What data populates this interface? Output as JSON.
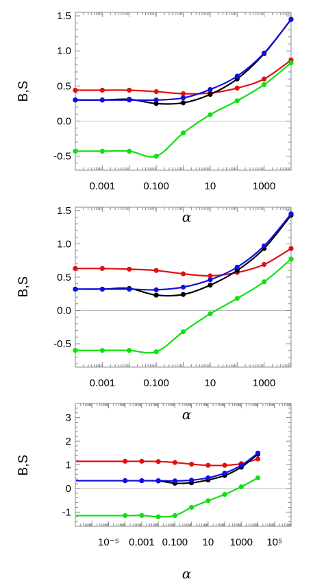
{
  "colors": {
    "black": "#000000",
    "blue": "#1010e0",
    "red": "#e01010",
    "green": "#10e010",
    "frame": "#888888",
    "zero_line": "#bbbbbb"
  },
  "chart_data": [
    {
      "type": "line",
      "xlabel": "α",
      "ylabel": "B,S",
      "x_scale": "log",
      "xlim": [
        0.0001,
        10000
      ],
      "ylim": [
        -0.7,
        1.55
      ],
      "x_ticks": [
        0.001,
        0.1,
        10,
        1000
      ],
      "x_tick_labels": [
        "0.001",
        "0.100",
        "10",
        "1000"
      ],
      "y_ticks": [
        -0.5,
        0.0,
        0.5,
        1.0,
        1.5
      ],
      "y_tick_labels": [
        "-0.5",
        "0.0",
        "0.5",
        "1.0",
        "1.5"
      ],
      "series": [
        {
          "color": "#e01010",
          "points": [
            [
              0.0001,
              0.44
            ],
            [
              0.001,
              0.44
            ],
            [
              0.01,
              0.44
            ],
            [
              0.1,
              0.42
            ],
            [
              1,
              0.39
            ],
            [
              10,
              0.4
            ],
            [
              100,
              0.47
            ],
            [
              1000,
              0.6
            ],
            [
              10000,
              0.87
            ]
          ]
        },
        {
          "color": "#000000",
          "points": [
            [
              0.0001,
              0.3
            ],
            [
              0.001,
              0.3
            ],
            [
              0.01,
              0.31
            ],
            [
              0.1,
              0.25
            ],
            [
              1,
              0.26
            ],
            [
              10,
              0.38
            ],
            [
              100,
              0.6
            ],
            [
              1000,
              0.96
            ],
            [
              10000,
              1.45
            ]
          ]
        },
        {
          "color": "#1010e0",
          "points": [
            [
              0.0001,
              0.3
            ],
            [
              0.001,
              0.3
            ],
            [
              0.01,
              0.3
            ],
            [
              0.1,
              0.3
            ],
            [
              1,
              0.33
            ],
            [
              10,
              0.45
            ],
            [
              100,
              0.64
            ],
            [
              1000,
              0.97
            ],
            [
              10000,
              1.45
            ]
          ]
        },
        {
          "color": "#10e010",
          "points": [
            [
              0.0001,
              -0.43
            ],
            [
              0.001,
              -0.43
            ],
            [
              0.01,
              -0.43
            ],
            [
              0.1,
              -0.5
            ],
            [
              1,
              -0.17
            ],
            [
              10,
              0.09
            ],
            [
              100,
              0.29
            ],
            [
              1000,
              0.52
            ],
            [
              10000,
              0.83
            ]
          ]
        }
      ]
    },
    {
      "type": "line",
      "xlabel": "α",
      "ylabel": "B,S",
      "x_scale": "log",
      "xlim": [
        0.0001,
        10000
      ],
      "ylim": [
        -0.85,
        1.55
      ],
      "x_ticks": [
        0.001,
        0.1,
        10,
        1000
      ],
      "x_tick_labels": [
        "0.001",
        "0.100",
        "10",
        "1000"
      ],
      "y_ticks": [
        -0.5,
        0.0,
        0.5,
        1.0,
        1.5
      ],
      "y_tick_labels": [
        "-0.5",
        "0.0",
        "0.5",
        "1.0",
        "1.5"
      ],
      "series": [
        {
          "color": "#e01010",
          "points": [
            [
              0.0001,
              0.63
            ],
            [
              0.001,
              0.63
            ],
            [
              0.01,
              0.62
            ],
            [
              0.1,
              0.6
            ],
            [
              1,
              0.55
            ],
            [
              10,
              0.52
            ],
            [
              100,
              0.57
            ],
            [
              1000,
              0.69
            ],
            [
              10000,
              0.93
            ]
          ]
        },
        {
          "color": "#000000",
          "points": [
            [
              0.0001,
              0.32
            ],
            [
              0.001,
              0.32
            ],
            [
              0.01,
              0.33
            ],
            [
              0.1,
              0.23
            ],
            [
              1,
              0.24
            ],
            [
              10,
              0.38
            ],
            [
              100,
              0.6
            ],
            [
              1000,
              0.93
            ],
            [
              10000,
              1.43
            ]
          ]
        },
        {
          "color": "#1010e0",
          "points": [
            [
              0.0001,
              0.32
            ],
            [
              0.001,
              0.32
            ],
            [
              0.01,
              0.32
            ],
            [
              0.1,
              0.31
            ],
            [
              1,
              0.35
            ],
            [
              10,
              0.46
            ],
            [
              100,
              0.65
            ],
            [
              1000,
              0.97
            ],
            [
              10000,
              1.45
            ]
          ]
        },
        {
          "color": "#10e010",
          "points": [
            [
              0.0001,
              -0.6
            ],
            [
              0.001,
              -0.6
            ],
            [
              0.01,
              -0.6
            ],
            [
              0.1,
              -0.62
            ],
            [
              1,
              -0.32
            ],
            [
              10,
              -0.05
            ],
            [
              100,
              0.18
            ],
            [
              1000,
              0.43
            ],
            [
              10000,
              0.77
            ]
          ]
        }
      ]
    },
    {
      "type": "line",
      "xlabel": "α",
      "ylabel": "B,S",
      "x_scale": "log",
      "xlim": [
        1e-07,
        1000000
      ],
      "ylim": [
        -1.6,
        3.6
      ],
      "x_ticks": [
        1e-05,
        0.001,
        0.1,
        10,
        1000,
        100000
      ],
      "x_tick_labels": [
        "10⁻⁵",
        "0.001",
        "0.100",
        "10",
        "1000",
        "10⁵"
      ],
      "y_ticks": [
        -1,
        0,
        1,
        2,
        3
      ],
      "y_tick_labels": [
        "-1",
        "0",
        "1",
        "2",
        "3"
      ],
      "series": [
        {
          "color": "#e01010",
          "points": [
            [
              0.0001,
              1.15
            ],
            [
              0.001,
              1.15
            ],
            [
              0.01,
              1.14
            ],
            [
              0.1,
              1.1
            ],
            [
              1,
              1.03
            ],
            [
              10,
              0.98
            ],
            [
              100,
              0.98
            ],
            [
              1000,
              1.05
            ],
            [
              10000,
              1.25
            ]
          ]
        },
        {
          "color": "#000000",
          "points": [
            [
              0.0001,
              0.33
            ],
            [
              0.001,
              0.33
            ],
            [
              0.01,
              0.32
            ],
            [
              0.1,
              0.22
            ],
            [
              1,
              0.24
            ],
            [
              10,
              0.36
            ],
            [
              100,
              0.55
            ],
            [
              1000,
              0.9
            ],
            [
              10000,
              1.45
            ]
          ]
        },
        {
          "color": "#1010e0",
          "points": [
            [
              0.0001,
              0.33
            ],
            [
              0.001,
              0.33
            ],
            [
              0.01,
              0.33
            ],
            [
              0.1,
              0.32
            ],
            [
              1,
              0.35
            ],
            [
              10,
              0.45
            ],
            [
              100,
              0.65
            ],
            [
              1000,
              0.98
            ],
            [
              10000,
              1.5
            ]
          ]
        },
        {
          "color": "#10e010",
          "points": [
            [
              0.0001,
              -1.15
            ],
            [
              0.001,
              -1.14
            ],
            [
              0.01,
              -1.2
            ],
            [
              0.1,
              -1.15
            ],
            [
              1,
              -0.8
            ],
            [
              10,
              -0.52
            ],
            [
              100,
              -0.25
            ],
            [
              1000,
              0.07
            ],
            [
              10000,
              0.45
            ]
          ]
        }
      ]
    }
  ]
}
